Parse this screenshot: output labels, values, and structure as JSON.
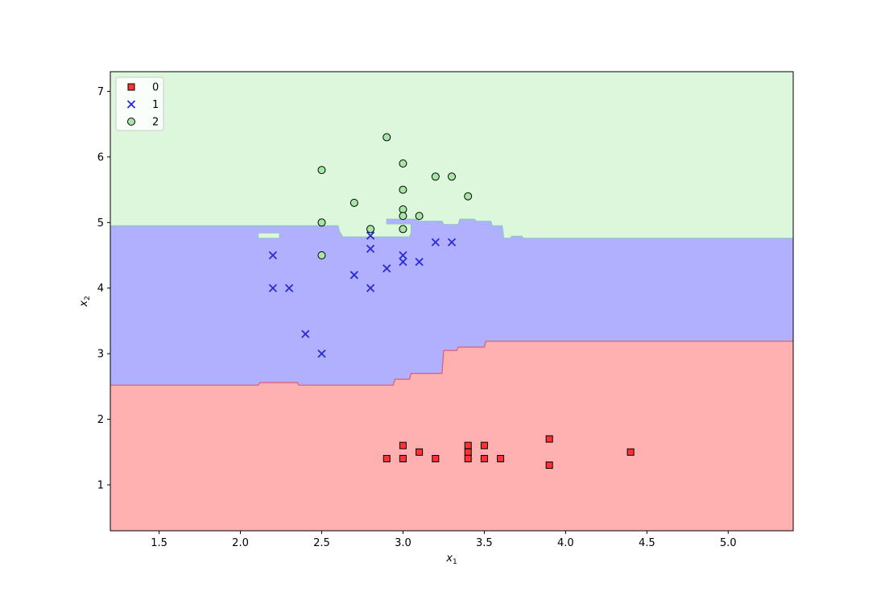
{
  "chart_data": {
    "type": "scatter",
    "title": "",
    "xlabel": "x",
    "xlabel_sub": "1",
    "ylabel": "x",
    "ylabel_sub": "2",
    "xlim": [
      1.2,
      5.4
    ],
    "ylim": [
      0.3,
      7.3
    ],
    "xticks": [
      1.5,
      2.0,
      2.5,
      3.0,
      3.5,
      4.0,
      4.5,
      5.0
    ],
    "xtick_labels": [
      "1.5",
      "2.0",
      "2.5",
      "3.0",
      "3.5",
      "4.0",
      "4.5",
      "5.0"
    ],
    "yticks": [
      1,
      2,
      3,
      4,
      5,
      6,
      7
    ],
    "ytick_labels": [
      "1",
      "2",
      "3",
      "4",
      "5",
      "6",
      "7"
    ],
    "grid": false,
    "legend_position": "top-left",
    "region_colors": {
      "0": "#ffb0b0",
      "1": "#b0b0ff",
      "2": "#dcf7dc"
    },
    "region_edge_colors": {
      "01": "#e05a72",
      "12": "#8fc6c6"
    },
    "boundary_0_1": [
      [
        1.2,
        2.52
      ],
      [
        2.11,
        2.52
      ],
      [
        2.12,
        2.56
      ],
      [
        2.35,
        2.56
      ],
      [
        2.36,
        2.52
      ],
      [
        2.94,
        2.52
      ],
      [
        2.95,
        2.61
      ],
      [
        3.04,
        2.61
      ],
      [
        3.05,
        2.7
      ],
      [
        3.24,
        2.7
      ],
      [
        3.25,
        3.05
      ],
      [
        3.33,
        3.05
      ],
      [
        3.34,
        3.1
      ],
      [
        3.5,
        3.1
      ],
      [
        3.51,
        3.19
      ],
      [
        5.4,
        3.19
      ]
    ],
    "boundary_1_2": [
      [
        1.2,
        4.95
      ],
      [
        2.6,
        4.95
      ],
      [
        2.61,
        4.86
      ],
      [
        2.63,
        4.78
      ],
      [
        2.94,
        4.78
      ],
      [
        2.95,
        4.78
      ],
      [
        3.04,
        4.78
      ],
      [
        3.05,
        4.84
      ],
      [
        3.05,
        4.98
      ],
      [
        2.9,
        4.98
      ],
      [
        2.9,
        5.05
      ],
      [
        3.09,
        5.05
      ],
      [
        3.1,
        5.02
      ],
      [
        3.24,
        5.02
      ],
      [
        3.25,
        4.97
      ],
      [
        3.34,
        4.97
      ],
      [
        3.35,
        5.05
      ],
      [
        3.44,
        5.05
      ],
      [
        3.45,
        5.02
      ],
      [
        3.54,
        5.02
      ],
      [
        3.55,
        4.95
      ],
      [
        3.61,
        4.95
      ],
      [
        3.62,
        4.76
      ],
      [
        3.66,
        4.76
      ],
      [
        3.67,
        4.79
      ],
      [
        3.73,
        4.79
      ],
      [
        3.74,
        4.76
      ],
      [
        5.4,
        4.76
      ]
    ],
    "island_2": [
      [
        2.11,
        4.84
      ],
      [
        2.24,
        4.84
      ],
      [
        2.24,
        4.76
      ],
      [
        2.11,
        4.76
      ]
    ],
    "series": [
      {
        "name": "0",
        "marker": "square",
        "color": "#ff3333",
        "points": [
          [
            2.9,
            1.4
          ],
          [
            3.0,
            1.6
          ],
          [
            3.0,
            1.4
          ],
          [
            3.0,
            1.4
          ],
          [
            3.1,
            1.5
          ],
          [
            3.2,
            1.4
          ],
          [
            3.4,
            1.6
          ],
          [
            3.4,
            1.5
          ],
          [
            3.4,
            1.4
          ],
          [
            3.5,
            1.6
          ],
          [
            3.5,
            1.4
          ],
          [
            3.6,
            1.4
          ],
          [
            3.9,
            1.7
          ],
          [
            3.9,
            1.3
          ],
          [
            4.4,
            1.5
          ]
        ]
      },
      {
        "name": "1",
        "marker": "x",
        "color": "#2a2ad6",
        "points": [
          [
            2.2,
            4.5
          ],
          [
            2.2,
            4.0
          ],
          [
            2.3,
            4.0
          ],
          [
            2.4,
            3.3
          ],
          [
            2.5,
            3.0
          ],
          [
            2.7,
            4.2
          ],
          [
            2.8,
            4.8
          ],
          [
            2.8,
            4.6
          ],
          [
            2.8,
            4.0
          ],
          [
            2.9,
            4.3
          ],
          [
            3.0,
            4.5
          ],
          [
            3.0,
            4.4
          ],
          [
            3.1,
            4.4
          ],
          [
            3.2,
            4.7
          ],
          [
            3.3,
            4.7
          ]
        ]
      },
      {
        "name": "2",
        "marker": "circle",
        "color": "#a8e6a8",
        "points": [
          [
            2.5,
            5.8
          ],
          [
            2.5,
            5.0
          ],
          [
            2.5,
            4.5
          ],
          [
            2.7,
            5.3
          ],
          [
            2.8,
            4.9
          ],
          [
            2.9,
            6.3
          ],
          [
            3.0,
            5.9
          ],
          [
            3.0,
            5.5
          ],
          [
            3.0,
            5.2
          ],
          [
            3.0,
            5.1
          ],
          [
            3.0,
            4.9
          ],
          [
            3.1,
            5.1
          ],
          [
            3.2,
            5.7
          ],
          [
            3.3,
            5.7
          ],
          [
            3.4,
            5.4
          ]
        ]
      }
    ]
  }
}
